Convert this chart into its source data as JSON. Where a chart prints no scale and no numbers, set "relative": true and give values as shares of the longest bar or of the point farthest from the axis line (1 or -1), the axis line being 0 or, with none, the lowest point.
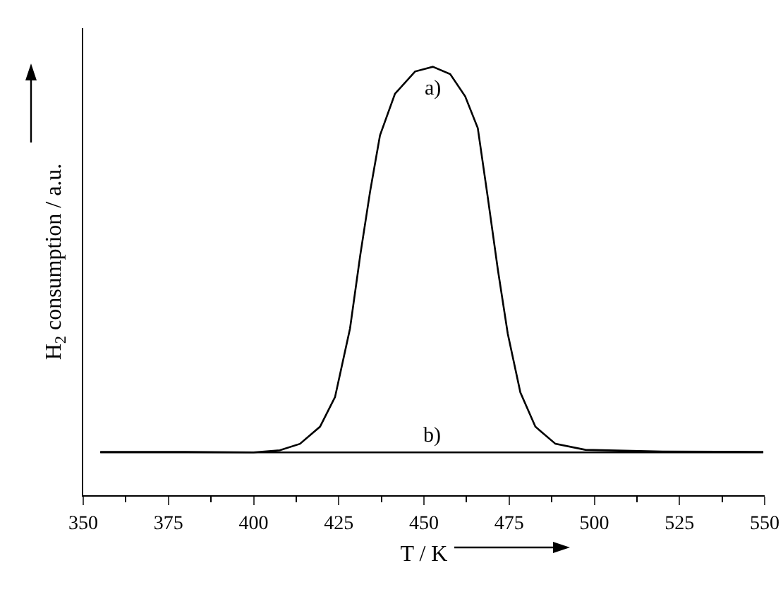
{
  "chart_data": {
    "type": "line",
    "relative": true,
    "xlabel": "T / K",
    "ylabel": "H$_{2}$ consumption / a.u.",
    "xlim": [
      350,
      550
    ],
    "xticks": [
      350,
      375,
      400,
      425,
      450,
      475,
      500,
      525,
      550
    ],
    "series": [
      {
        "name": "a)",
        "color": "#000000",
        "x": [
          355,
          380,
          400,
          407.7,
          413.6,
          419.5,
          423.9,
          428.3,
          431.3,
          434.2,
          437.1,
          441.5,
          447.4,
          452.6,
          457.7,
          462.1,
          465.8,
          468.7,
          471.7,
          474.6,
          478.3,
          482.7,
          488.6,
          497.4,
          520,
          549.6
        ],
        "values": [
          0.101,
          0.101,
          0.1,
          0.105,
          0.12,
          0.16,
          0.229,
          0.389,
          0.56,
          0.709,
          0.84,
          0.937,
          0.989,
          1.0,
          0.983,
          0.931,
          0.857,
          0.697,
          0.526,
          0.377,
          0.24,
          0.16,
          0.12,
          0.106,
          0.102,
          0.101
        ]
      },
      {
        "name": "b)",
        "color": "#000000",
        "x": [
          355,
          549.6
        ],
        "values": [
          0.1,
          0.1
        ]
      }
    ],
    "grid": false,
    "legend": false,
    "marker": "none",
    "line_style": "solid"
  }
}
